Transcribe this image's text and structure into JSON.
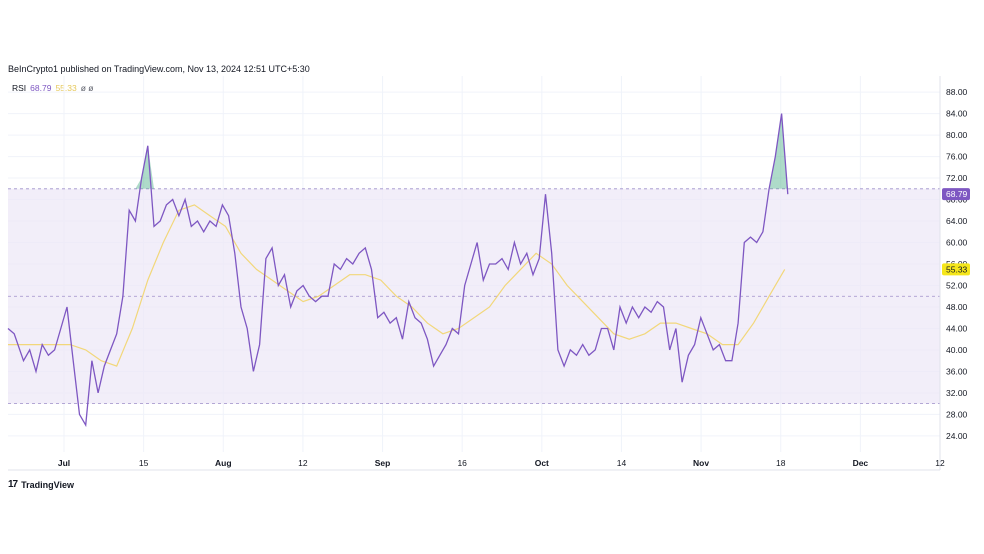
{
  "header": {
    "published": "BeInCrypto1 published on TradingView.com, Nov 13, 2024 12:51 UTC+5:30"
  },
  "legend": {
    "name": "RSI",
    "rsi_value": "68.79",
    "ma_value": "55.33",
    "symbols": "ø ø"
  },
  "footer": {
    "logo_mark": "17",
    "logo_text": "TradingView"
  },
  "colors": {
    "rsi_line": "#7e57c2",
    "ma_line": "#f2d77a",
    "band_fill": "#ede7f6",
    "grid": "#f0f3fa",
    "dashed": "#9e8fc9"
  },
  "chart_data": {
    "type": "line",
    "ylim": [
      21,
      91
    ],
    "y_ticks": [
      "88.00",
      "84.00",
      "80.00",
      "76.00",
      "72.00",
      "68.00",
      "64.00",
      "60.00",
      "56.00",
      "52.00",
      "48.00",
      "44.00",
      "40.00",
      "36.00",
      "32.00",
      "28.00",
      "24.00"
    ],
    "x_ticks": [
      "Jul",
      "15",
      "Aug",
      "12",
      "Sep",
      "16",
      "Oct",
      "14",
      "Nov",
      "18",
      "Dec",
      "12"
    ],
    "bands": {
      "upper": 70,
      "middle": 50,
      "lower": 30
    },
    "series": [
      {
        "values": [
          [
            0,
            44
          ],
          [
            2,
            43
          ],
          [
            5,
            38
          ],
          [
            7,
            40
          ],
          [
            9,
            36
          ],
          [
            11,
            41
          ],
          [
            13,
            39
          ],
          [
            15,
            40
          ],
          [
            17,
            44
          ],
          [
            19,
            48
          ],
          [
            21,
            38
          ],
          [
            23,
            28
          ],
          [
            25,
            26
          ],
          [
            27,
            38
          ],
          [
            29,
            32
          ],
          [
            31,
            37
          ],
          [
            33,
            40
          ],
          [
            35,
            43
          ],
          [
            37,
            50
          ],
          [
            39,
            66
          ],
          [
            41,
            64
          ],
          [
            43,
            72
          ],
          [
            45,
            78
          ],
          [
            47,
            63
          ],
          [
            49,
            64
          ],
          [
            51,
            67
          ],
          [
            53,
            68
          ],
          [
            55,
            65
          ],
          [
            57,
            68
          ],
          [
            59,
            63
          ],
          [
            61,
            64
          ],
          [
            63,
            62
          ],
          [
            65,
            64
          ],
          [
            67,
            63
          ],
          [
            69,
            67
          ],
          [
            71,
            65
          ],
          [
            73,
            58
          ],
          [
            75,
            48
          ],
          [
            77,
            44
          ],
          [
            79,
            36
          ],
          [
            81,
            41
          ],
          [
            83,
            57
          ],
          [
            85,
            59
          ],
          [
            87,
            52
          ],
          [
            89,
            54
          ],
          [
            91,
            48
          ],
          [
            93,
            51
          ],
          [
            95,
            52
          ],
          [
            97,
            50
          ],
          [
            99,
            49
          ],
          [
            101,
            50
          ],
          [
            103,
            50
          ],
          [
            105,
            56
          ],
          [
            107,
            55
          ],
          [
            109,
            57
          ],
          [
            111,
            56
          ],
          [
            113,
            58
          ],
          [
            115,
            59
          ],
          [
            117,
            55
          ],
          [
            119,
            46
          ],
          [
            121,
            47
          ],
          [
            123,
            45
          ],
          [
            125,
            46
          ],
          [
            127,
            42
          ],
          [
            129,
            49
          ],
          [
            131,
            46
          ],
          [
            133,
            45
          ],
          [
            135,
            42
          ],
          [
            137,
            37
          ],
          [
            139,
            39
          ],
          [
            141,
            41
          ],
          [
            143,
            44
          ],
          [
            145,
            43
          ],
          [
            147,
            52
          ],
          [
            149,
            56
          ],
          [
            151,
            60
          ],
          [
            153,
            53
          ],
          [
            155,
            56
          ],
          [
            157,
            56
          ],
          [
            159,
            57
          ],
          [
            161,
            55
          ],
          [
            163,
            60
          ],
          [
            165,
            56
          ],
          [
            167,
            58
          ],
          [
            169,
            54
          ],
          [
            171,
            57
          ],
          [
            173,
            69
          ],
          [
            175,
            58
          ],
          [
            177,
            40
          ],
          [
            179,
            37
          ],
          [
            181,
            40
          ],
          [
            183,
            39
          ],
          [
            185,
            41
          ],
          [
            187,
            39
          ],
          [
            189,
            40
          ],
          [
            191,
            44
          ],
          [
            193,
            44
          ],
          [
            195,
            40
          ],
          [
            197,
            48
          ],
          [
            199,
            45
          ],
          [
            201,
            48
          ],
          [
            203,
            46
          ],
          [
            205,
            48
          ],
          [
            207,
            47
          ],
          [
            209,
            49
          ],
          [
            211,
            48
          ],
          [
            213,
            40
          ],
          [
            215,
            44
          ],
          [
            217,
            34
          ],
          [
            219,
            39
          ],
          [
            221,
            41
          ],
          [
            223,
            46
          ],
          [
            225,
            43
          ],
          [
            227,
            40
          ],
          [
            229,
            41
          ],
          [
            231,
            38
          ],
          [
            233,
            38
          ],
          [
            235,
            45
          ],
          [
            237,
            60
          ],
          [
            239,
            61
          ],
          [
            241,
            60
          ],
          [
            243,
            62
          ],
          [
            245,
            70
          ],
          [
            247,
            76
          ],
          [
            249,
            84
          ],
          [
            251,
            69
          ]
        ]
      },
      {
        "values": [
          [
            0,
            41
          ],
          [
            10,
            41
          ],
          [
            20,
            41
          ],
          [
            25,
            40
          ],
          [
            30,
            38
          ],
          [
            35,
            37
          ],
          [
            40,
            44
          ],
          [
            45,
            53
          ],
          [
            50,
            60
          ],
          [
            55,
            66
          ],
          [
            60,
            67
          ],
          [
            65,
            65
          ],
          [
            70,
            63
          ],
          [
            75,
            58
          ],
          [
            80,
            55
          ],
          [
            85,
            53
          ],
          [
            90,
            51
          ],
          [
            95,
            49
          ],
          [
            100,
            50
          ],
          [
            105,
            52
          ],
          [
            110,
            54
          ],
          [
            115,
            54
          ],
          [
            120,
            53
          ],
          [
            125,
            50
          ],
          [
            130,
            48
          ],
          [
            135,
            45
          ],
          [
            140,
            43
          ],
          [
            145,
            44
          ],
          [
            150,
            46
          ],
          [
            155,
            48
          ],
          [
            160,
            52
          ],
          [
            165,
            55
          ],
          [
            170,
            58
          ],
          [
            175,
            56
          ],
          [
            180,
            52
          ],
          [
            185,
            49
          ],
          [
            190,
            46
          ],
          [
            195,
            43
          ],
          [
            200,
            42
          ],
          [
            205,
            43
          ],
          [
            210,
            45
          ],
          [
            215,
            45
          ],
          [
            220,
            44
          ],
          [
            225,
            43
          ],
          [
            230,
            41
          ],
          [
            235,
            41
          ],
          [
            240,
            45
          ],
          [
            245,
            50
          ],
          [
            250,
            55
          ]
        ]
      }
    ]
  }
}
